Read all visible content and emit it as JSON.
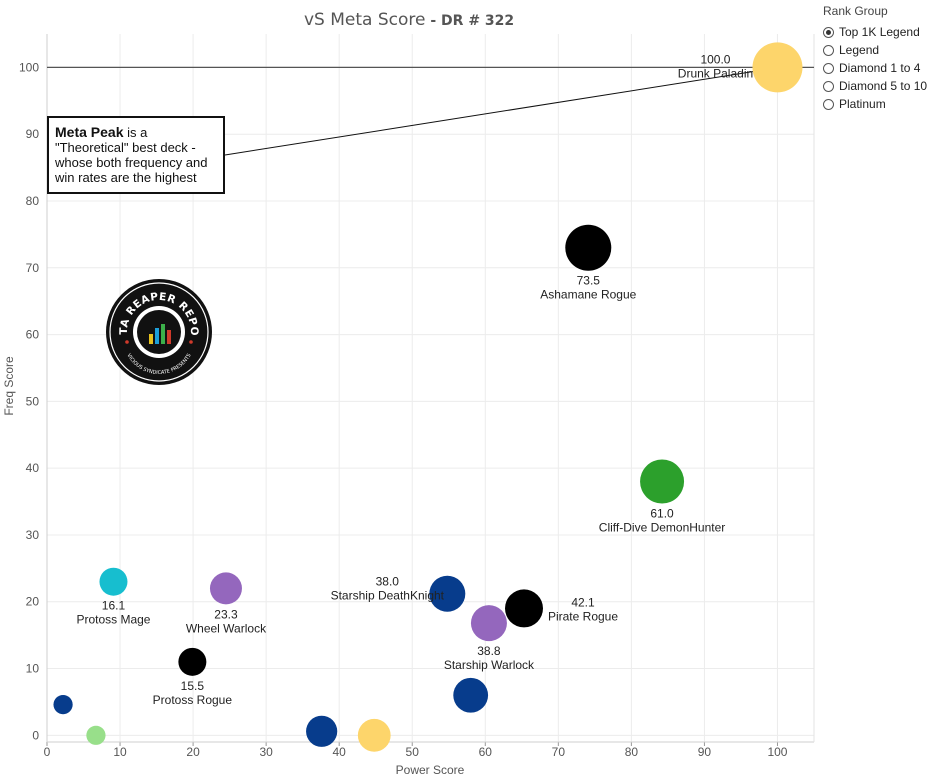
{
  "title": {
    "main": "vS Meta Score",
    "sub": " - DR # 322"
  },
  "legend": {
    "title": "Rank Group",
    "items": [
      {
        "label": "Top 1K Legend",
        "selected": true
      },
      {
        "label": "Legend",
        "selected": false
      },
      {
        "label": "Diamond 1 to 4",
        "selected": false
      },
      {
        "label": "Diamond 5 to 10",
        "selected": false
      },
      {
        "label": "Platinum",
        "selected": false
      }
    ]
  },
  "annotation": {
    "strong": "Meta Peak",
    "text": " is a \"Theoretical\" best deck - whose both frequency and win rates are the highest"
  },
  "logo": {
    "text_top": "DATA REAPER REPORT",
    "text_bottom": "VICIOUS SYNDICATE PRESENTS"
  },
  "chart_data": {
    "type": "scatter",
    "xlabel": "Power Score",
    "ylabel": "Freq Score",
    "xlim": [
      0,
      105
    ],
    "ylim": [
      -1,
      105
    ],
    "xticks": [
      "0",
      "10",
      "20",
      "30",
      "40",
      "50",
      "60",
      "70",
      "80",
      "90",
      "100"
    ],
    "yticks": [
      "0",
      "10",
      "20",
      "30",
      "40",
      "50",
      "60",
      "70",
      "80",
      "90",
      "100"
    ],
    "grid": true,
    "reference_line_y": 100,
    "colors": {
      "yellow": "#fdd56b",
      "black": "#000000",
      "green": "#2ca02c",
      "navy": "#073c8c",
      "purple": "#9467bd",
      "cyan": "#17becf",
      "lightgreen": "#98df8a"
    },
    "points": [
      {
        "name": "Drunk Paladin",
        "score": "100.0",
        "x": 100,
        "y": 100,
        "color": "yellow",
        "size": 1.25,
        "label_pos": "left-top"
      },
      {
        "name": "Ashamane Rogue",
        "score": "73.5",
        "x": 74.1,
        "y": 73,
        "color": "black",
        "size": 1.15,
        "label_pos": "below"
      },
      {
        "name": "Cliff-Dive DemonHunter",
        "score": "61.0",
        "x": 84.2,
        "y": 38,
        "color": "green",
        "size": 1.1,
        "label_pos": "below"
      },
      {
        "name": "Starship DeathKnight",
        "score": "38.0",
        "x": 54.8,
        "y": 21.2,
        "color": "navy",
        "size": 0.9,
        "label_pos": "left"
      },
      {
        "name": "Pirate Rogue",
        "score": "42.1",
        "x": 65.3,
        "y": 19,
        "color": "black",
        "size": 0.95,
        "label_pos": "right"
      },
      {
        "name": "Starship Warlock",
        "score": "38.8",
        "x": 60.5,
        "y": 16.8,
        "color": "purple",
        "size": 0.9,
        "label_pos": "below"
      },
      {
        "name": "Protoss Mage",
        "score": "16.1",
        "x": 9.1,
        "y": 23,
        "color": "cyan",
        "size": 0.7,
        "label_pos": "below"
      },
      {
        "name": "Wheel Warlock",
        "score": "23.3",
        "x": 24.5,
        "y": 22,
        "color": "purple",
        "size": 0.8,
        "label_pos": "below"
      },
      {
        "name": "Protoss Rogue",
        "score": "15.5",
        "x": 19.9,
        "y": 11,
        "color": "black",
        "size": 0.7,
        "label_pos": "below"
      },
      {
        "name": "",
        "score": "",
        "x": 58,
        "y": 6,
        "color": "navy",
        "size": 0.87,
        "label_pos": "none"
      },
      {
        "name": "",
        "score": "",
        "x": 2.2,
        "y": 4.6,
        "color": "navy",
        "size": 0.48,
        "label_pos": "none"
      },
      {
        "name": "",
        "score": "",
        "x": 6.7,
        "y": 0,
        "color": "lightgreen",
        "size": 0.48,
        "label_pos": "none"
      },
      {
        "name": "",
        "score": "",
        "x": 37.6,
        "y": 0.6,
        "color": "navy",
        "size": 0.78,
        "label_pos": "none"
      },
      {
        "name": "",
        "score": "",
        "x": 44.8,
        "y": 0,
        "color": "yellow",
        "size": 0.82,
        "label_pos": "none"
      }
    ]
  }
}
